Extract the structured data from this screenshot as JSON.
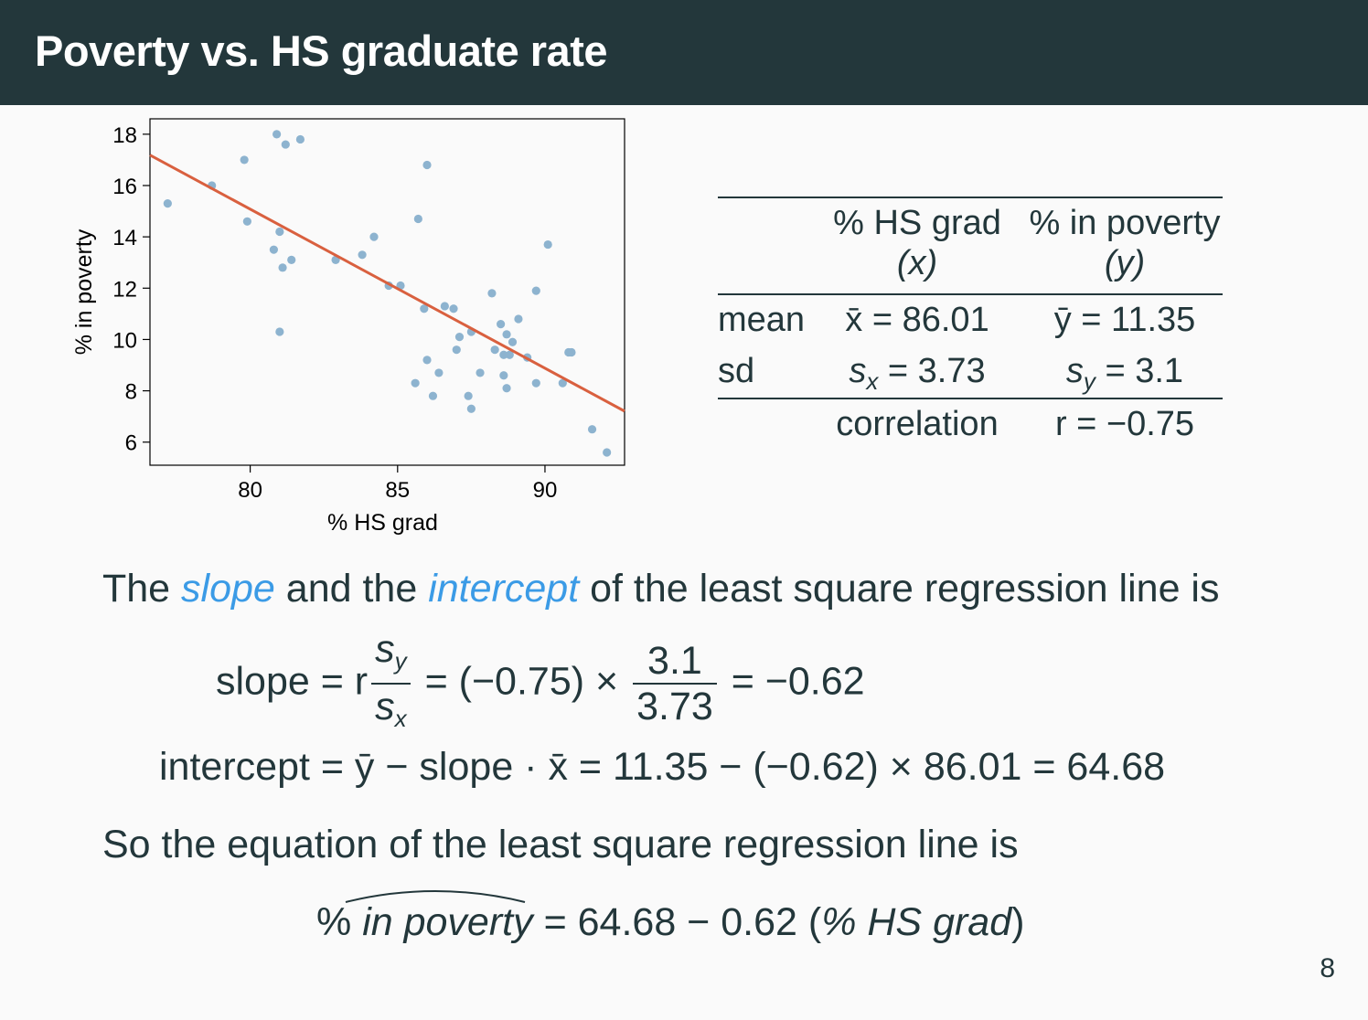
{
  "slide": {
    "title": "Poverty vs. HS graduate rate",
    "page_number": "8"
  },
  "chart_data": {
    "type": "scatter",
    "title": "",
    "xlabel": "% HS grad",
    "ylabel": "% in poverty",
    "xlim": [
      76.6,
      92.7
    ],
    "ylim": [
      5.1,
      18.6
    ],
    "xticks": [
      80,
      85,
      90
    ],
    "yticks": [
      6,
      8,
      10,
      12,
      14,
      16,
      18
    ],
    "grid": false,
    "point_color": "#8db3cf",
    "line_color": "#d9603f",
    "points": [
      [
        77.2,
        15.3
      ],
      [
        78.7,
        16.0
      ],
      [
        79.8,
        17.0
      ],
      [
        79.9,
        14.6
      ],
      [
        80.8,
        13.5
      ],
      [
        80.9,
        18.0
      ],
      [
        81.0,
        14.2
      ],
      [
        81.0,
        10.3
      ],
      [
        81.1,
        12.8
      ],
      [
        81.2,
        17.6
      ],
      [
        81.4,
        13.1
      ],
      [
        81.7,
        17.8
      ],
      [
        82.9,
        13.1
      ],
      [
        83.8,
        13.3
      ],
      [
        84.2,
        14.0
      ],
      [
        84.7,
        12.1
      ],
      [
        85.1,
        12.1
      ],
      [
        85.6,
        8.3
      ],
      [
        85.7,
        14.7
      ],
      [
        85.9,
        11.2
      ],
      [
        86.0,
        9.2
      ],
      [
        86.0,
        16.8
      ],
      [
        86.2,
        7.8
      ],
      [
        86.4,
        8.7
      ],
      [
        86.6,
        11.3
      ],
      [
        86.9,
        11.2
      ],
      [
        87.0,
        9.6
      ],
      [
        87.1,
        10.1
      ],
      [
        87.4,
        7.8
      ],
      [
        87.5,
        10.3
      ],
      [
        87.5,
        7.3
      ],
      [
        87.8,
        8.7
      ],
      [
        88.2,
        11.8
      ],
      [
        88.3,
        9.6
      ],
      [
        88.5,
        10.6
      ],
      [
        88.6,
        8.6
      ],
      [
        88.6,
        9.4
      ],
      [
        88.7,
        10.2
      ],
      [
        88.7,
        8.1
      ],
      [
        88.8,
        9.4
      ],
      [
        88.9,
        9.9
      ],
      [
        89.1,
        10.8
      ],
      [
        89.4,
        9.3
      ],
      [
        89.7,
        11.9
      ],
      [
        89.7,
        8.3
      ],
      [
        90.1,
        13.7
      ],
      [
        90.6,
        8.3
      ],
      [
        90.8,
        9.5
      ],
      [
        90.9,
        9.5
      ],
      [
        91.6,
        6.5
      ],
      [
        92.1,
        5.6
      ]
    ],
    "regression": {
      "intercept": 64.68,
      "slope": -0.62
    }
  },
  "stats_table": {
    "col_x_header": "% HS grad",
    "col_x_symbol": "(x)",
    "col_y_header": "% in poverty",
    "col_y_symbol": "(y)",
    "row_mean_label": "mean",
    "mean_x": "x̄ = 86.01",
    "mean_y": "ȳ = 11.35",
    "row_sd_label": "sd",
    "sd_x_value": "= 3.73",
    "sd_y_value": "= 3.1",
    "correlation_label": "correlation",
    "correlation_value": "r = −0.75"
  },
  "text": {
    "intro_1": "The ",
    "slope_word": "slope",
    "intro_2": " and the ",
    "intercept_word": "intercept",
    "intro_3": " of the least square regression line is",
    "slope_eq_prefix": "slope = r",
    "slope_eq_num": "s",
    "slope_eq_num_sub": "y",
    "slope_eq_den": "s",
    "slope_eq_den_sub": "x",
    "slope_eq_middle": " = (−0.75) × ",
    "slope_eq_num2": "3.1",
    "slope_eq_den2": "3.73",
    "slope_eq_result": " = −0.62",
    "intercept_eq": "intercept = ȳ − slope · x̄ = 11.35 − (−0.62) × 86.01 = 64.68",
    "so_sentence": "So the equation of the least square regression line is",
    "final_lhs_1": "% ",
    "final_lhs_2": "in poverty",
    "final_rhs_1": " = 64.68 − 0.62 (",
    "final_rhs_2": "% HS grad",
    "final_rhs_3": ")"
  }
}
